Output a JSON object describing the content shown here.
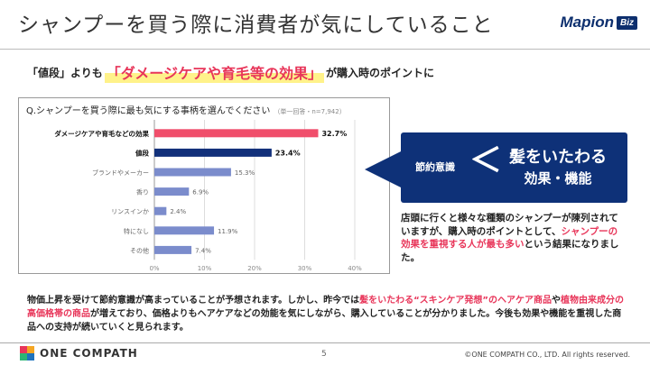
{
  "header": {
    "title": "シャンプーを買う際に消費者が気にしていること",
    "logo_text": "Mapion",
    "logo_badge": "Biz"
  },
  "lead": {
    "prefix": "「値段」よりも",
    "highlight": "「ダメージケアや育毛等の効果」",
    "suffix": "が購入時のポイントに"
  },
  "chart_data": {
    "type": "bar",
    "orientation": "horizontal",
    "question": "Q.シャンプーを買う際に最も気にする事柄を選んでください",
    "note": "（単一回答・n=7,942）",
    "categories": [
      "ダメージケアや育毛などの効果",
      "値段",
      "ブランドやメーカー",
      "香り",
      "リンスインか",
      "特になし",
      "その他"
    ],
    "values": [
      32.7,
      23.4,
      15.3,
      6.9,
      2.4,
      11.9,
      7.4
    ],
    "value_labels": [
      "32.7%",
      "23.4%",
      "15.3%",
      "6.9%",
      "2.4%",
      "11.9%",
      "7.4%"
    ],
    "bar_colors": [
      "#f04e6b",
      "#12307a",
      "#7b8ccc",
      "#7b8ccc",
      "#7b8ccc",
      "#7b8ccc",
      "#7b8ccc"
    ],
    "bold_categories": [
      true,
      true,
      false,
      false,
      false,
      false,
      false
    ],
    "xlim": [
      0,
      40
    ],
    "xticks": [
      0,
      10,
      20,
      30,
      40
    ],
    "xtick_labels": [
      "0%",
      "10%",
      "20%",
      "30%",
      "40%"
    ],
    "grid": true
  },
  "callout": {
    "keyword": "節約意識",
    "chevron": "＜",
    "line1": "髪をいたわる",
    "line2": "効果・機能"
  },
  "explain": {
    "part1": "店頭に行くと様々な種類のシャンプーが陳列されていますが、購入時のポイントとして、",
    "red": "シャンプーの効果を重視する人が最も多い",
    "part2": "という結果になりました。"
  },
  "summary": {
    "part1": "物価上昇を受けて節約意識が高まっていることが予想されます。しかし、昨今では",
    "red1": "髪をいたわる“スキンケア発想”のヘアケア商品",
    "part2": "や",
    "red2": "植物由来成分の高価格帯の商品",
    "part3": "が増えており、価格よりもヘアケアなどの効能を気にしながら、購入していることが分かりました。今後も効果や機能を重視した商品への支持が続いていくと見られます。"
  },
  "footer": {
    "brand": "ONE COMPATH",
    "page": "5",
    "copyright": "©ONE COMPATH CO., LTD. All rights reserved."
  },
  "colors": {
    "accent_red": "#e8365a",
    "navy": "#0e3178",
    "bar_light": "#7b8ccc"
  }
}
